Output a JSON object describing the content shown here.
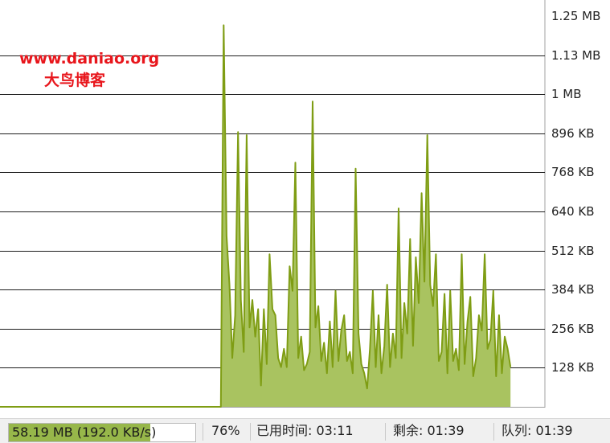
{
  "watermark": {
    "url": "www.daniao.org",
    "name": "大鸟博客"
  },
  "status": {
    "transferred": "58.19 MB (192.0 KB/s)",
    "progress": 0.76,
    "percent": "76%",
    "elapsed": "已用时间: 03:11",
    "remaining": "剩余: 01:39",
    "queue": "队列: 01:39"
  },
  "colors": {
    "fill": "#a9c360",
    "line": "#7f9d14",
    "grid": "#1e1e1e",
    "watermark": "#e8161c"
  },
  "chart_data": {
    "type": "area",
    "unit": "KB",
    "y_ticks": [
      {
        "value": 128,
        "label": "128 KB"
      },
      {
        "value": 256,
        "label": "256 KB"
      },
      {
        "value": 384,
        "label": "384 KB"
      },
      {
        "value": 512,
        "label": "512 KB"
      },
      {
        "value": 640,
        "label": "640 KB"
      },
      {
        "value": 768,
        "label": "768 KB"
      },
      {
        "value": 896,
        "label": "896 KB"
      },
      {
        "value": 1024,
        "label": "1 MB"
      },
      {
        "value": 1152,
        "label": "1.13 MB"
      },
      {
        "value": 1280,
        "label": "1.25 MB"
      }
    ],
    "ylim": [
      0,
      1280
    ],
    "xlim": [
      0,
      190
    ],
    "grid": true,
    "series": [
      {
        "x": [
          0,
          77,
          78,
          79,
          80,
          81,
          82,
          83,
          84,
          85,
          86,
          87,
          88,
          89,
          90,
          91,
          92,
          93,
          94,
          95,
          96,
          97,
          98,
          99,
          100,
          101,
          102,
          103,
          104,
          105,
          106,
          107,
          108,
          109,
          110,
          111,
          112,
          113,
          114,
          115,
          116,
          117,
          118,
          119,
          120,
          121,
          122,
          123,
          124,
          125,
          126,
          127,
          128,
          129,
          130,
          131,
          132,
          133,
          134,
          135,
          136,
          137,
          138,
          139,
          140,
          141,
          142,
          143,
          144,
          145,
          146,
          147,
          148,
          149,
          150,
          151,
          152,
          153,
          154,
          155,
          156,
          157,
          158,
          159,
          160,
          161,
          162,
          163,
          164,
          165,
          166,
          167,
          168,
          169,
          170,
          171,
          172,
          173,
          174,
          175,
          176,
          177,
          178
        ],
        "values": [
          0,
          0,
          1250,
          560,
          400,
          160,
          300,
          900,
          350,
          180,
          890,
          260,
          350,
          230,
          320,
          70,
          320,
          140,
          500,
          320,
          300,
          160,
          130,
          190,
          130,
          460,
          380,
          800,
          160,
          230,
          120,
          140,
          180,
          1000,
          260,
          330,
          150,
          210,
          110,
          280,
          130,
          380,
          150,
          250,
          300,
          150,
          180,
          110,
          780,
          240,
          140,
          110,
          60,
          190,
          380,
          130,
          300,
          110,
          200,
          400,
          130,
          240,
          160,
          650,
          160,
          340,
          240,
          550,
          200,
          490,
          340,
          700,
          410,
          890,
          400,
          330,
          500,
          150,
          180,
          370,
          110,
          380,
          150,
          190,
          120,
          500,
          140,
          280,
          360,
          100,
          160,
          300,
          250,
          500,
          190,
          220,
          380,
          100,
          300,
          110,
          230,
          190,
          130
        ]
      }
    ]
  }
}
